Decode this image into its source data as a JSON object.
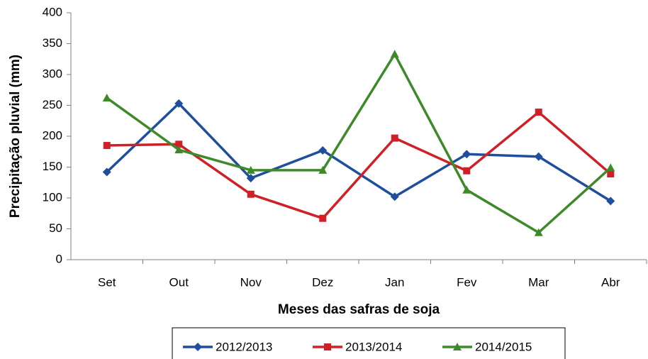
{
  "chart_data": {
    "type": "line",
    "xlabel": "Meses das safras de soja",
    "ylabel": "Precipitação pluvial (mm)",
    "categories": [
      "Set",
      "Out",
      "Nov",
      "Dez",
      "Jan",
      "Fev",
      "Mar",
      "Abr"
    ],
    "series": [
      {
        "name": "2012/2013",
        "color": "#1f4e9c",
        "marker": "diamond",
        "values": [
          142,
          253,
          132,
          177,
          102,
          171,
          167,
          95
        ]
      },
      {
        "name": "2013/2014",
        "color": "#d02027",
        "marker": "square",
        "values": [
          185,
          187,
          106,
          67,
          197,
          144,
          239,
          139
        ]
      },
      {
        "name": "2014/2015",
        "color": "#3e8a2a",
        "marker": "triangle",
        "values": [
          262,
          178,
          145,
          145,
          333,
          113,
          44,
          149
        ]
      }
    ],
    "ylim": [
      0,
      400
    ],
    "yticks": [
      0,
      50,
      100,
      150,
      200,
      250,
      300,
      350,
      400
    ],
    "grid": false,
    "legend": "bottom"
  }
}
